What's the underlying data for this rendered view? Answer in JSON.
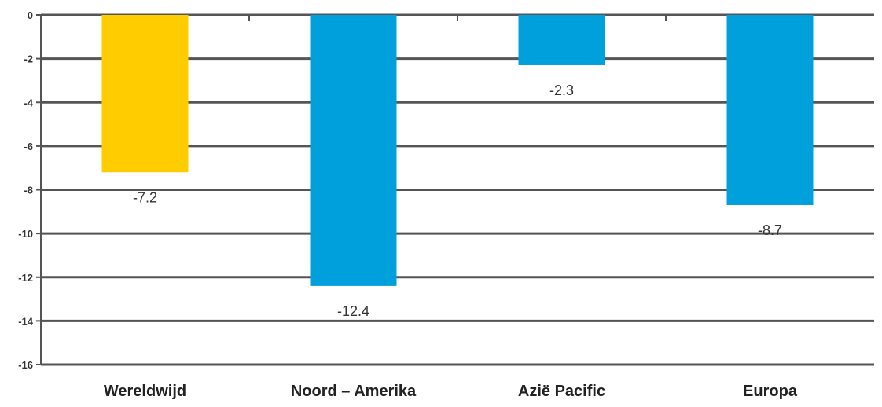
{
  "chart_data": {
    "type": "bar",
    "categories": [
      "Wereldwijd",
      "Noord – Amerika",
      "Azië Pacific",
      "Europa"
    ],
    "values": [
      -7.2,
      -12.4,
      -2.3,
      -8.7
    ],
    "data_labels": [
      "-7.2",
      "-12.4",
      "-2.3",
      "-8.7"
    ],
    "ylim": [
      -16,
      0
    ],
    "yticks": [
      0,
      -2,
      -4,
      -6,
      -8,
      -10,
      -12,
      -14,
      -16
    ],
    "ytick_labels": [
      "0",
      "-2",
      "-4",
      "-6",
      "-8",
      "-10",
      "-12",
      "-14",
      "-16"
    ],
    "grid": true,
    "colors": [
      "#FFCC00",
      "#00A0DC",
      "#00A0DC",
      "#00A0DC"
    ],
    "title": "",
    "xlabel": "",
    "ylabel": ""
  }
}
